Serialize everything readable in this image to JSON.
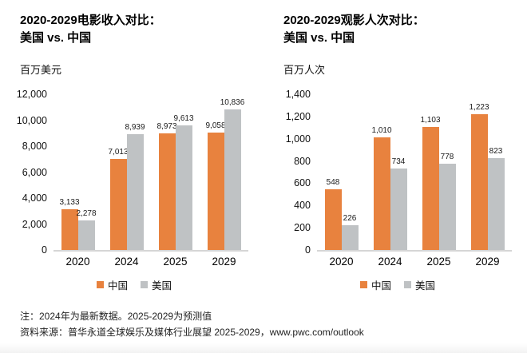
{
  "colors": {
    "china": "#E8823E",
    "usa": "#BFC2C4",
    "axis_line": "#D6D6D6"
  },
  "chart_data": [
    {
      "type": "bar",
      "title_line1": "2020-2029电影收入对比：",
      "title_line2": "美国 vs. 中国",
      "unit_label": "百万美元",
      "categories": [
        "2020",
        "2024",
        "2025",
        "2029"
      ],
      "series": [
        {
          "name": "中国",
          "color_key": "china",
          "values": [
            3133,
            7013,
            8973,
            9058
          ],
          "labels": [
            "3,133",
            "7,013",
            "8,973",
            "9,058"
          ]
        },
        {
          "name": "美国",
          "color_key": "usa",
          "values": [
            2278,
            8939,
            9613,
            10836
          ],
          "labels": [
            "2,278",
            "8,939",
            "9,613",
            "10,836"
          ]
        }
      ],
      "ylim": [
        0,
        12000
      ],
      "yticks": [
        "0",
        "2,000",
        "4,000",
        "6,000",
        "8,000",
        "10,000",
        "12,000"
      ],
      "grid": false,
      "legend_position": "bottom-center"
    },
    {
      "type": "bar",
      "title_line1": "2020-2029观影人次对比：",
      "title_line2": "美国 vs. 中国",
      "unit_label": "百万人次",
      "categories": [
        "2020",
        "2024",
        "2025",
        "2029"
      ],
      "series": [
        {
          "name": "中国",
          "color_key": "china",
          "values": [
            548,
            1010,
            1103,
            1223
          ],
          "labels": [
            "548",
            "1,010",
            "1,103",
            "1,223"
          ]
        },
        {
          "name": "美国",
          "color_key": "usa",
          "values": [
            226,
            734,
            778,
            823
          ],
          "labels": [
            "226",
            "734",
            "778",
            "823"
          ]
        }
      ],
      "ylim": [
        0,
        1400
      ],
      "yticks": [
        "0",
        "200",
        "400",
        "600",
        "800",
        "1,000",
        "1,200",
        "1,400"
      ],
      "grid": false,
      "legend_position": "bottom-center"
    }
  ],
  "footer": {
    "note": "注：2024年为最新数据。2025-2029为预测值",
    "source": "资料来源：普华永道全球娱乐及媒体行业展望 2025-2029，www.pwc.com/outlook"
  }
}
